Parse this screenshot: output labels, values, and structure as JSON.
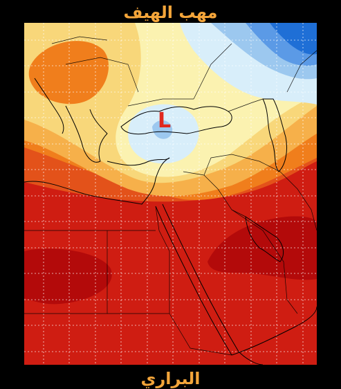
{
  "header": {
    "title": "مهب الهيف"
  },
  "footer": {
    "title": "البراري"
  },
  "map": {
    "low_marker": "L",
    "colors": {
      "background": "#000000",
      "title": "#f4a53a",
      "marker": "#e0281e",
      "temperature_scale": [
        "#1f6fd6",
        "#5b9ae6",
        "#9cc8ef",
        "#d8eefa",
        "#fbf2b0",
        "#f8d77a",
        "#f6b04a",
        "#f07e1c",
        "#e3521a",
        "#cf1d12",
        "#b30a0a"
      ]
    },
    "legend": []
  }
}
